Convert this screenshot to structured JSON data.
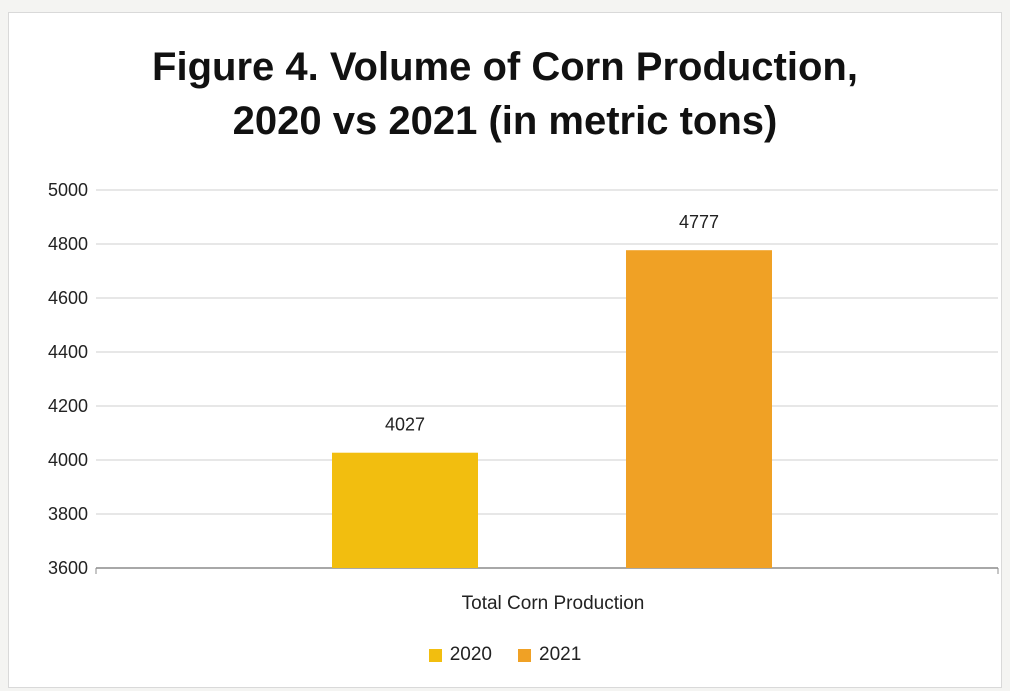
{
  "chart_data": {
    "type": "bar",
    "title": "Figure 4. Volume of Corn Production, 2020 vs 2021 (in metric tons)",
    "title_lines": [
      "Figure 4. Volume of Corn Production,",
      "2020 vs 2021 (in metric tons)"
    ],
    "categories": [
      "Total Corn Production"
    ],
    "series": [
      {
        "name": "2020",
        "values": [
          4027
        ],
        "color": "#F2BE0F"
      },
      {
        "name": "2021",
        "values": [
          4777
        ],
        "color": "#F0A125"
      }
    ],
    "ylim": [
      3600,
      5000
    ],
    "yticks": [
      3600,
      3800,
      4000,
      4200,
      4400,
      4600,
      4800,
      5000
    ],
    "grid": true,
    "legend": "bottom"
  }
}
